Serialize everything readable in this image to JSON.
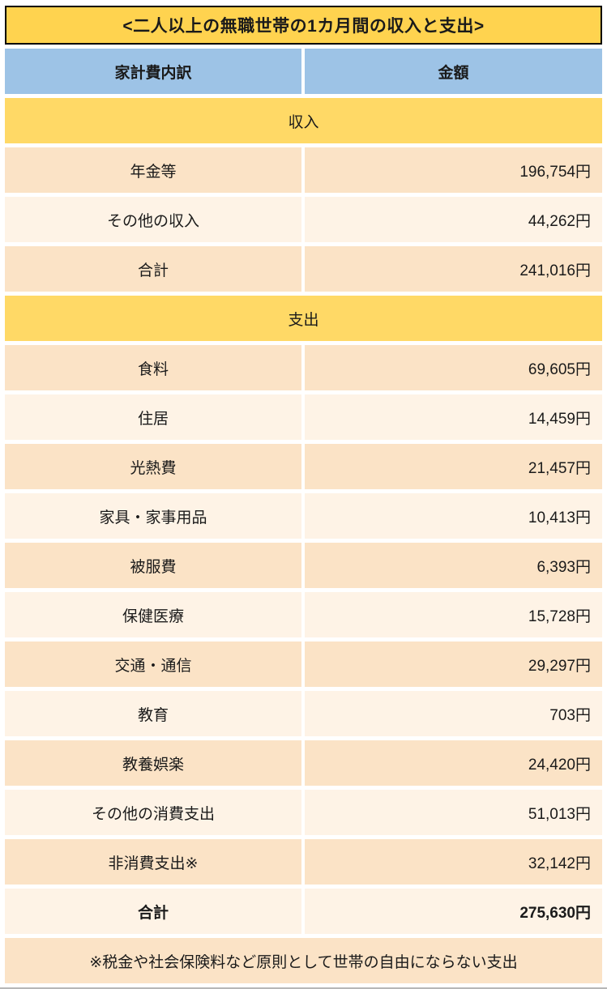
{
  "title": "<二人以上の無職世帯の1カ月間の収入と支出>",
  "columns": {
    "item": "家計費内訳",
    "amount": "金額"
  },
  "income": {
    "label": "収入",
    "rows": [
      {
        "item": "年金等",
        "amount": "196,754円"
      },
      {
        "item": "その他の収入",
        "amount": "44,262円"
      },
      {
        "item": "合計",
        "amount": "241,016円"
      }
    ]
  },
  "expense": {
    "label": "支出",
    "rows": [
      {
        "item": "食料",
        "amount": "69,605円"
      },
      {
        "item": "住居",
        "amount": "14,459円"
      },
      {
        "item": "光熱費",
        "amount": "21,457円"
      },
      {
        "item": "家具・家事用品",
        "amount": "10,413円"
      },
      {
        "item": "被服費",
        "amount": "6,393円"
      },
      {
        "item": "保健医療",
        "amount": "15,728円"
      },
      {
        "item": "交通・通信",
        "amount": "29,297円"
      },
      {
        "item": "教育",
        "amount": "703円"
      },
      {
        "item": "教養娯楽",
        "amount": "24,420円"
      },
      {
        "item": "その他の消費支出",
        "amount": "51,013円"
      },
      {
        "item": "非消費支出※",
        "amount": "32,142円"
      },
      {
        "item": "合計",
        "amount": "275,630円"
      }
    ]
  },
  "footnote": "※税金や社会保険料など原則として世帯の自由にならない支出",
  "colors": {
    "title_bg": "#FFD34F",
    "header_bg": "#9DC3E6",
    "section_bg": "#FFD966",
    "row_dark_bg": "#FBE3C6",
    "row_light_bg": "#FEF3E6",
    "border": "#000000"
  },
  "chart_data": {
    "type": "table",
    "title": "<二人以上の無職世帯の1カ月間の収入と支出>",
    "columns": [
      "家計費内訳",
      "金額"
    ],
    "sections": [
      {
        "name": "収入",
        "rows": [
          [
            "年金等",
            196754
          ],
          [
            "その他の収入",
            44262
          ],
          [
            "合計",
            241016
          ]
        ]
      },
      {
        "name": "支出",
        "rows": [
          [
            "食料",
            69605
          ],
          [
            "住居",
            14459
          ],
          [
            "光熱費",
            21457
          ],
          [
            "家具・家事用品",
            10413
          ],
          [
            "被服費",
            6393
          ],
          [
            "保健医療",
            15728
          ],
          [
            "交通・通信",
            29297
          ],
          [
            "教育",
            703
          ],
          [
            "教養娯楽",
            24420
          ],
          [
            "その他の消費支出",
            51013
          ],
          [
            "非消費支出※",
            32142
          ],
          [
            "合計",
            275630
          ]
        ]
      }
    ],
    "unit": "円",
    "footnote": "※税金や社会保険料など原則として世帯の自由にならない支出"
  }
}
